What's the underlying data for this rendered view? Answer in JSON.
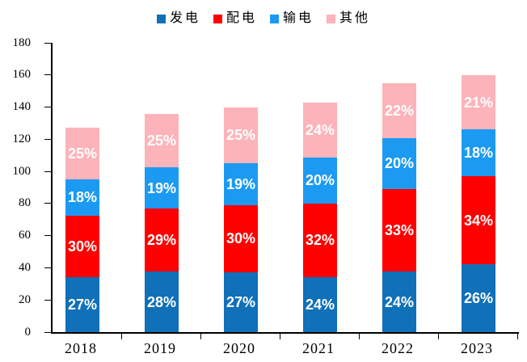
{
  "legend": {
    "items": [
      {
        "label": "发电",
        "color": "#1070B8"
      },
      {
        "label": "配电",
        "color": "#FF0000"
      },
      {
        "label": "输电",
        "color": "#1C9AF2"
      },
      {
        "label": "其他",
        "color": "#FCB3B9"
      }
    ]
  },
  "chart_data": {
    "type": "bar",
    "stacked": true,
    "title": "",
    "xlabel": "",
    "ylabel": "",
    "categories": [
      "2018",
      "2019",
      "2020",
      "2021",
      "2022",
      "2023"
    ],
    "series": [
      {
        "name": "发电",
        "color": "#1070B8",
        "values": [
          27,
          28,
          27,
          24,
          24,
          26
        ],
        "labels": [
          "27%",
          "28%",
          "27%",
          "24%",
          "24%",
          "26%"
        ]
      },
      {
        "name": "配电",
        "color": "#FF0000",
        "values": [
          30,
          29,
          30,
          32,
          33,
          34
        ],
        "labels": [
          "30%",
          "29%",
          "30%",
          "32%",
          "33%",
          "34%"
        ]
      },
      {
        "name": "输电",
        "color": "#1C9AF2",
        "values": [
          18,
          19,
          19,
          20,
          20,
          18
        ],
        "labels": [
          "18%",
          "19%",
          "19%",
          "20%",
          "20%",
          "18%"
        ]
      },
      {
        "name": "其他",
        "color": "#FCB3B9",
        "values": [
          25,
          25,
          25,
          24,
          22,
          21
        ],
        "labels": [
          "25%",
          "25%",
          "25%",
          "24%",
          "22%",
          "21%"
        ]
      }
    ],
    "totals": [
      127,
      136,
      140,
      143,
      155,
      160
    ],
    "ylim": [
      0,
      180
    ],
    "yticks": [
      0,
      20,
      40,
      60,
      80,
      100,
      120,
      140,
      160,
      180
    ],
    "legend_position": "top",
    "grid": false,
    "label_color": "#FFFFFF",
    "axis_color": "#000000"
  }
}
